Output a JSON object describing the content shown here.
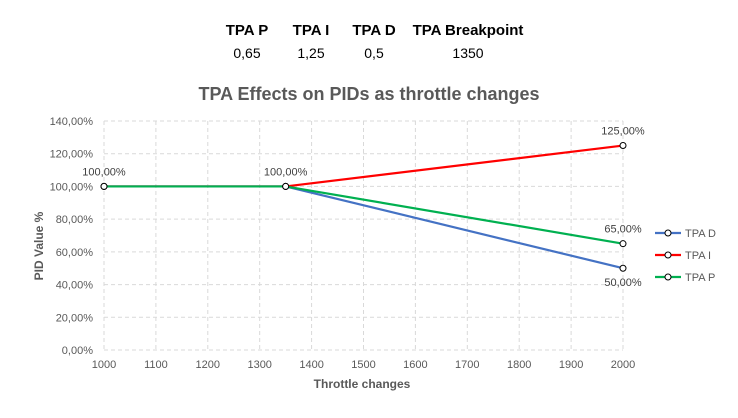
{
  "params": [
    {
      "label": "TPA P",
      "value": "0,65"
    },
    {
      "label": "TPA I",
      "value": "1,25"
    },
    {
      "label": "TPA D",
      "value": "0,5"
    },
    {
      "label": "TPA Breakpoint",
      "value": "1350"
    }
  ],
  "chart_data": {
    "type": "line",
    "title": "TPA Effects on PIDs as throttle changes",
    "xlabel": "Throttle changes",
    "ylabel": "PID Value %",
    "xlim": [
      1000,
      2000
    ],
    "ylim": [
      0,
      140
    ],
    "x_ticks": [
      "1000",
      "1100",
      "1200",
      "1300",
      "1400",
      "1500",
      "1600",
      "1700",
      "1800",
      "1900",
      "2000"
    ],
    "y_ticks": [
      "0,00%",
      "20,00%",
      "40,00%",
      "60,00%",
      "80,00%",
      "100,00%",
      "120,00%",
      "140,00%"
    ],
    "grid": true,
    "legend_position": "right",
    "series": [
      {
        "name": "TPA D",
        "color": "#4472C4",
        "points": [
          {
            "x": 1000,
            "y": 100
          },
          {
            "x": 1350,
            "y": 100
          },
          {
            "x": 2000,
            "y": 50
          }
        ]
      },
      {
        "name": "TPA I",
        "color": "#FF0000",
        "points": [
          {
            "x": 1000,
            "y": 100
          },
          {
            "x": 1350,
            "y": 100
          },
          {
            "x": 2000,
            "y": 125
          }
        ]
      },
      {
        "name": "TPA P",
        "color": "#00B050",
        "points": [
          {
            "x": 1000,
            "y": 100
          },
          {
            "x": 1350,
            "y": 100
          },
          {
            "x": 2000,
            "y": 65
          }
        ]
      }
    ],
    "annotations": [
      {
        "text": "100,00%",
        "x": 1000,
        "y": 100,
        "anchor": "above"
      },
      {
        "text": "100,00%",
        "x": 1350,
        "y": 100,
        "anchor": "above"
      },
      {
        "text": "125,00%",
        "x": 2000,
        "y": 125,
        "anchor": "above"
      },
      {
        "text": "65,00%",
        "x": 2000,
        "y": 65,
        "anchor": "above"
      },
      {
        "text": "50,00%",
        "x": 2000,
        "y": 50,
        "anchor": "below"
      }
    ]
  }
}
